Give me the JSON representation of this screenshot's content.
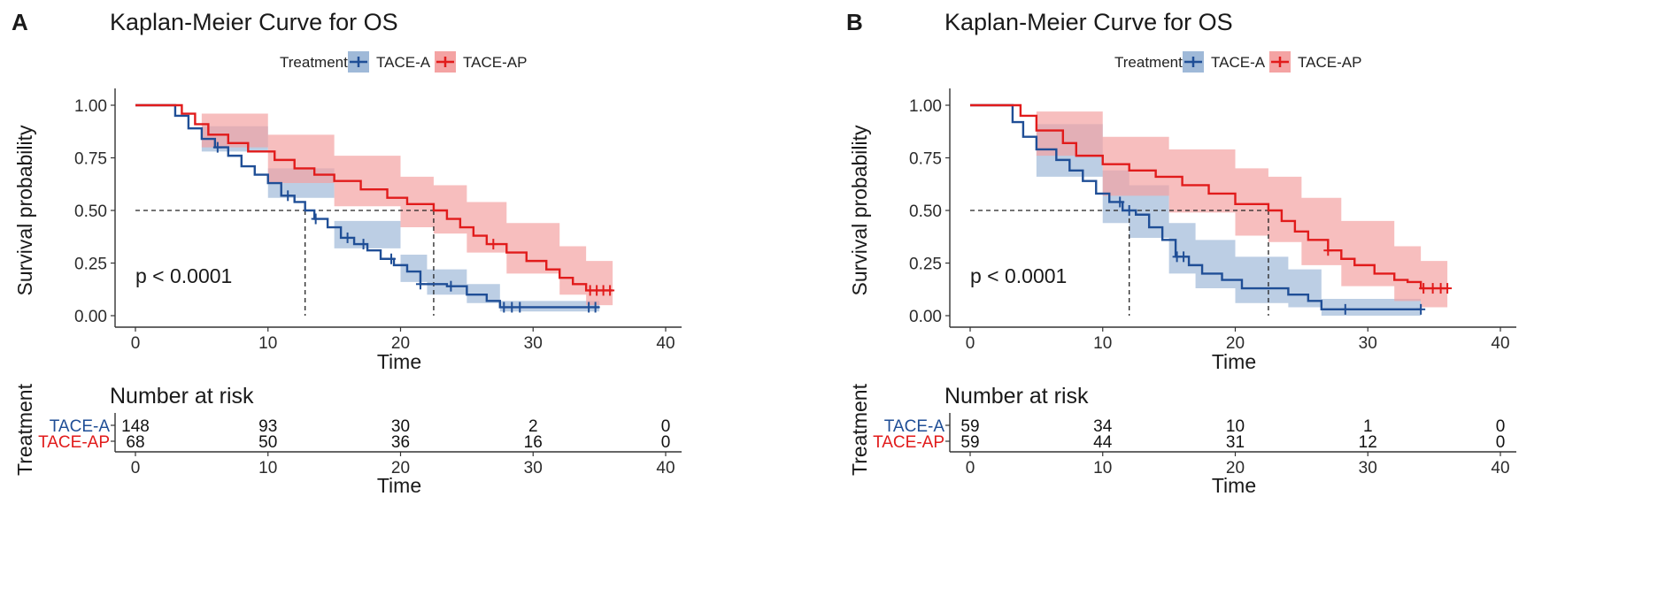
{
  "colors": {
    "group_a": "#1f4e96",
    "group_a_band": "#9fb9d8",
    "group_ap": "#e11b1b",
    "group_ap_band": "#f4a3a3",
    "axis": "#333333"
  },
  "chart_data": [
    {
      "type": "line",
      "subtype": "kaplan-meier",
      "panel_label": "A",
      "title": "Kaplan-Meier Curve for OS",
      "legend": {
        "title": "Treatment",
        "placement": "top",
        "entries": [
          "TACE-A",
          "TACE-AP"
        ]
      },
      "xlabel": "Time",
      "ylabel": "Survival probability",
      "xlim": [
        0,
        40
      ],
      "ylim": [
        0,
        1
      ],
      "xticks": [
        0,
        10,
        20,
        30,
        40
      ],
      "yticks": [
        "0.00",
        "0.25",
        "0.50",
        "0.75",
        "1.00"
      ],
      "pvalue": "p < 0.0001",
      "median_lines": [
        12.8,
        22.5
      ],
      "series": [
        {
          "name": "TACE-A",
          "steps": [
            [
              0,
              1.0
            ],
            [
              2.4,
              1.0
            ],
            [
              3.0,
              0.95
            ],
            [
              4.0,
              0.89
            ],
            [
              5.0,
              0.84
            ],
            [
              6.0,
              0.8
            ],
            [
              7.0,
              0.76
            ],
            [
              8.0,
              0.71
            ],
            [
              9.0,
              0.67
            ],
            [
              10.0,
              0.63
            ],
            [
              11.0,
              0.57
            ],
            [
              12.0,
              0.54
            ],
            [
              12.8,
              0.5
            ],
            [
              13.5,
              0.46
            ],
            [
              14.5,
              0.42
            ],
            [
              15.5,
              0.37
            ],
            [
              16.5,
              0.34
            ],
            [
              17.5,
              0.31
            ],
            [
              18.5,
              0.27
            ],
            [
              19.5,
              0.24
            ],
            [
              20.5,
              0.21
            ],
            [
              21.5,
              0.15
            ],
            [
              23.5,
              0.14
            ],
            [
              25.0,
              0.1
            ],
            [
              26.5,
              0.07
            ],
            [
              27.5,
              0.04
            ],
            [
              35.0,
              0.04
            ]
          ],
          "band": [
            [
              0,
              1.0,
              1.0
            ],
            [
              2.4,
              1.0,
              1.0
            ],
            [
              5.0,
              0.9,
              0.78
            ],
            [
              10.0,
              0.7,
              0.56
            ],
            [
              15.0,
              0.45,
              0.32
            ],
            [
              20.0,
              0.29,
              0.16
            ],
            [
              22.0,
              0.22,
              0.1
            ],
            [
              25.0,
              0.15,
              0.06
            ],
            [
              27.5,
              0.07,
              0.02
            ],
            [
              35.0,
              0.07,
              0.02
            ]
          ],
          "censor": [
            6.2,
            11.5,
            13.6,
            16.0,
            17.2,
            19.3,
            21.5,
            23.8,
            27.8,
            28.4,
            29.0,
            34.2,
            34.7
          ]
        },
        {
          "name": "TACE-AP",
          "steps": [
            [
              0,
              1.0
            ],
            [
              2.4,
              1.0
            ],
            [
              3.5,
              0.96
            ],
            [
              4.5,
              0.91
            ],
            [
              5.5,
              0.86
            ],
            [
              7.0,
              0.82
            ],
            [
              8.5,
              0.78
            ],
            [
              10.5,
              0.74
            ],
            [
              12.0,
              0.7
            ],
            [
              13.5,
              0.67
            ],
            [
              15.0,
              0.64
            ],
            [
              17.0,
              0.6
            ],
            [
              19.0,
              0.56
            ],
            [
              20.5,
              0.53
            ],
            [
              22.5,
              0.5
            ],
            [
              23.5,
              0.46
            ],
            [
              24.5,
              0.42
            ],
            [
              25.5,
              0.38
            ],
            [
              26.5,
              0.34
            ],
            [
              28.0,
              0.3
            ],
            [
              29.5,
              0.26
            ],
            [
              31.0,
              0.22
            ],
            [
              32.0,
              0.18
            ],
            [
              33.0,
              0.15
            ],
            [
              34.0,
              0.12
            ],
            [
              36.0,
              0.12
            ]
          ],
          "band": [
            [
              0,
              1.0,
              1.0
            ],
            [
              2.4,
              1.0,
              1.0
            ],
            [
              5.0,
              0.96,
              0.8
            ],
            [
              10.0,
              0.86,
              0.63
            ],
            [
              15.0,
              0.76,
              0.52
            ],
            [
              20.0,
              0.66,
              0.42
            ],
            [
              22.5,
              0.62,
              0.39
            ],
            [
              25.0,
              0.54,
              0.3
            ],
            [
              28.0,
              0.44,
              0.2
            ],
            [
              32.0,
              0.33,
              0.1
            ],
            [
              34.0,
              0.26,
              0.05
            ],
            [
              36.0,
              0.26,
              0.05
            ]
          ],
          "censor": [
            27.0,
            34.3,
            34.8,
            35.3,
            35.8
          ]
        }
      ],
      "risk_table": {
        "title": "Number at risk",
        "ylabel": "Treatment",
        "xlabel": "Time",
        "times": [
          0,
          10,
          20,
          30,
          40
        ],
        "rows": [
          {
            "label": "TACE-A",
            "values": [
              "148",
              "93",
              "30",
              "2",
              "0"
            ]
          },
          {
            "label": "TACE-AP",
            "values": [
              "68",
              "50",
              "36",
              "16",
              "0"
            ]
          }
        ]
      }
    },
    {
      "type": "line",
      "subtype": "kaplan-meier",
      "panel_label": "B",
      "title": "Kaplan-Meier Curve for OS",
      "legend": {
        "title": "Treatment",
        "placement": "top",
        "entries": [
          "TACE-A",
          "TACE-AP"
        ]
      },
      "xlabel": "Time",
      "ylabel": "Survival probability",
      "xlim": [
        0,
        40
      ],
      "ylim": [
        0,
        1
      ],
      "xticks": [
        0,
        10,
        20,
        30,
        40
      ],
      "yticks": [
        "0.00",
        "0.25",
        "0.50",
        "0.75",
        "1.00"
      ],
      "pvalue": "p < 0.0001",
      "median_lines": [
        12.0,
        22.5
      ],
      "series": [
        {
          "name": "TACE-A",
          "steps": [
            [
              0,
              1.0
            ],
            [
              2.8,
              1.0
            ],
            [
              3.2,
              0.92
            ],
            [
              4.0,
              0.85
            ],
            [
              5.0,
              0.79
            ],
            [
              6.5,
              0.74
            ],
            [
              7.5,
              0.69
            ],
            [
              8.5,
              0.64
            ],
            [
              9.5,
              0.58
            ],
            [
              10.5,
              0.54
            ],
            [
              11.5,
              0.5
            ],
            [
              12.5,
              0.48
            ],
            [
              13.5,
              0.42
            ],
            [
              14.5,
              0.36
            ],
            [
              15.5,
              0.28
            ],
            [
              16.5,
              0.24
            ],
            [
              17.5,
              0.2
            ],
            [
              19.0,
              0.17
            ],
            [
              20.5,
              0.13
            ],
            [
              24.0,
              0.1
            ],
            [
              25.5,
              0.07
            ],
            [
              26.5,
              0.03
            ],
            [
              34.0,
              0.03
            ]
          ],
          "band": [
            [
              0,
              1.0,
              1.0
            ],
            [
              2.8,
              1.0,
              1.0
            ],
            [
              5.0,
              0.91,
              0.66
            ],
            [
              10.0,
              0.69,
              0.44
            ],
            [
              12.0,
              0.62,
              0.37
            ],
            [
              15.0,
              0.44,
              0.2
            ],
            [
              17.0,
              0.36,
              0.13
            ],
            [
              20.0,
              0.28,
              0.06
            ],
            [
              24.0,
              0.22,
              0.04
            ],
            [
              26.5,
              0.08,
              0.0
            ],
            [
              34.0,
              0.08,
              0.0
            ]
          ],
          "censor": [
            11.3,
            12.0,
            15.6,
            16.1,
            28.3,
            34.0
          ]
        },
        {
          "name": "TACE-AP",
          "steps": [
            [
              0,
              1.0
            ],
            [
              2.8,
              1.0
            ],
            [
              3.8,
              0.95
            ],
            [
              5.0,
              0.88
            ],
            [
              7.0,
              0.82
            ],
            [
              8.0,
              0.76
            ],
            [
              10.0,
              0.72
            ],
            [
              12.0,
              0.69
            ],
            [
              14.0,
              0.66
            ],
            [
              16.0,
              0.62
            ],
            [
              18.0,
              0.58
            ],
            [
              20.0,
              0.53
            ],
            [
              22.5,
              0.5
            ],
            [
              23.5,
              0.45
            ],
            [
              24.5,
              0.4
            ],
            [
              25.5,
              0.36
            ],
            [
              27.0,
              0.31
            ],
            [
              28.0,
              0.27
            ],
            [
              29.0,
              0.24
            ],
            [
              30.5,
              0.2
            ],
            [
              32.0,
              0.17
            ],
            [
              33.0,
              0.16
            ],
            [
              34.0,
              0.13
            ],
            [
              36.0,
              0.13
            ]
          ],
          "band": [
            [
              0,
              1.0,
              1.0
            ],
            [
              2.8,
              1.0,
              1.0
            ],
            [
              5.0,
              0.97,
              0.76
            ],
            [
              10.0,
              0.85,
              0.57
            ],
            [
              15.0,
              0.79,
              0.49
            ],
            [
              20.0,
              0.7,
              0.38
            ],
            [
              22.5,
              0.66,
              0.35
            ],
            [
              25.0,
              0.56,
              0.24
            ],
            [
              28.0,
              0.45,
              0.14
            ],
            [
              32.0,
              0.33,
              0.07
            ],
            [
              34.0,
              0.26,
              0.04
            ],
            [
              36.0,
              0.26,
              0.04
            ]
          ],
          "censor": [
            27.0,
            34.2,
            34.9,
            35.5,
            36.0
          ]
        }
      ],
      "risk_table": {
        "title": "Number at risk",
        "ylabel": "Treatment",
        "xlabel": "Time",
        "times": [
          0,
          10,
          20,
          30,
          40
        ],
        "rows": [
          {
            "label": "TACE-A",
            "values": [
              "59",
              "34",
              "10",
              "1",
              "0"
            ]
          },
          {
            "label": "TACE-AP",
            "values": [
              "59",
              "44",
              "31",
              "12",
              "0"
            ]
          }
        ]
      }
    }
  ]
}
